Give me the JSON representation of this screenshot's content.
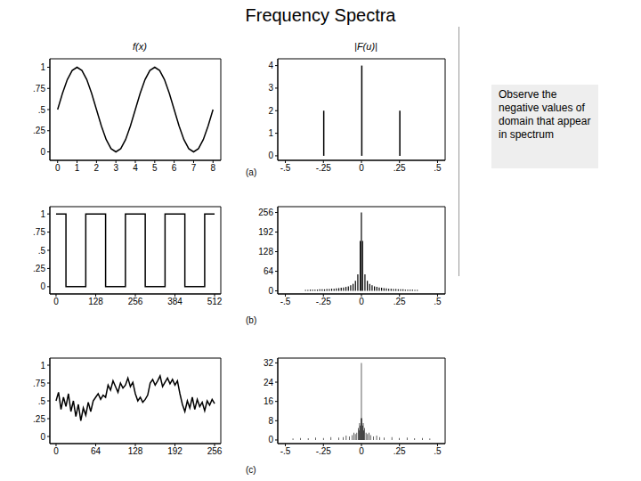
{
  "title": "Frequency Spectra",
  "note": "Observe the negative values of domain that appear in spectrum",
  "panel_labels": [
    "(a)",
    "(b)",
    "(c)"
  ],
  "chart_data": [
    {
      "type": "line",
      "title": "f(x)",
      "color": "#000000",
      "line_style": "solid",
      "x": [
        0,
        0.25,
        0.5,
        0.75,
        1,
        1.25,
        1.5,
        1.75,
        2,
        2.25,
        2.5,
        2.75,
        3,
        3.25,
        3.5,
        3.75,
        4,
        4.25,
        4.5,
        4.75,
        5,
        5.25,
        5.5,
        5.75,
        6,
        6.25,
        6.5,
        6.75,
        7,
        7.25,
        7.5,
        7.75,
        8
      ],
      "values": [
        0.5,
        0.691,
        0.854,
        0.962,
        1,
        0.962,
        0.854,
        0.691,
        0.5,
        0.309,
        0.146,
        0.038,
        0,
        0.038,
        0.146,
        0.309,
        0.5,
        0.691,
        0.854,
        0.962,
        1,
        0.962,
        0.854,
        0.691,
        0.5,
        0.309,
        0.146,
        0.038,
        0,
        0.038,
        0.146,
        0.309,
        0.5
      ],
      "xlim": [
        -0.4,
        8.4
      ],
      "ylim": [
        -0.1,
        1.1
      ],
      "xticks": [
        0,
        1,
        2,
        3,
        4,
        5,
        6,
        7,
        8
      ],
      "yticks": [
        0,
        {
          "value": 0.25,
          "label": ".25"
        },
        {
          "value": 0.5,
          "label": ".5"
        },
        {
          "value": 0.75,
          "label": ".75"
        },
        1
      ]
    },
    {
      "type": "bar",
      "title": "|F(u)|",
      "color": "#000000",
      "x": [
        -0.25,
        0,
        0.25
      ],
      "values": [
        2,
        4,
        2
      ],
      "xlim": [
        -0.55,
        0.55
      ],
      "ylim": [
        -0.2,
        4.3
      ],
      "xticks": [
        {
          "value": -0.5,
          "label": "-.5"
        },
        {
          "value": -0.25,
          "label": "-.25"
        },
        0,
        {
          "value": 0.25,
          "label": ".25"
        },
        {
          "value": 0.5,
          "label": ".5"
        }
      ],
      "yticks": [
        0,
        1,
        2,
        3,
        4
      ]
    },
    {
      "type": "line",
      "color": "#000000",
      "line_style": "step",
      "x": [
        0,
        32,
        96,
        160,
        224,
        288,
        352,
        416,
        480,
        512
      ],
      "values": [
        1,
        0,
        1,
        0,
        1,
        0,
        1,
        0,
        1,
        1
      ],
      "xlim": [
        -20,
        532
      ],
      "ylim": [
        -0.1,
        1.1
      ],
      "xticks": [
        0,
        128,
        256,
        384,
        512
      ],
      "yticks": [
        0,
        {
          "value": 0.25,
          "label": ".25"
        },
        {
          "value": 0.5,
          "label": ".5"
        },
        {
          "value": 0.75,
          "label": ".75"
        },
        1
      ]
    },
    {
      "type": "bar",
      "color": "#000000",
      "x": [
        -0.3672,
        -0.3516,
        -0.3359,
        -0.3203,
        -0.3047,
        -0.2891,
        -0.2734,
        -0.2578,
        -0.2422,
        -0.2266,
        -0.2109,
        -0.1953,
        -0.1797,
        -0.1641,
        -0.1484,
        -0.1328,
        -0.1172,
        -0.1016,
        -0.0859,
        -0.0703,
        -0.0547,
        -0.0391,
        -0.0234,
        -0.0078,
        0,
        0.0078,
        0.0234,
        0.0391,
        0.0547,
        0.0703,
        0.0859,
        0.1016,
        0.1172,
        0.1328,
        0.1484,
        0.1641,
        0.1797,
        0.1953,
        0.2109,
        0.2266,
        0.2422,
        0.2578,
        0.2734,
        0.2891,
        0.3047,
        0.3203,
        0.3359,
        0.3516,
        0.3672
      ],
      "values": [
        3,
        3,
        4,
        4,
        4,
        4,
        5,
        5,
        5,
        6,
        6,
        7,
        7,
        8,
        9,
        10,
        11,
        13,
        15,
        18,
        23,
        33,
        54,
        163,
        256,
        163,
        54,
        33,
        23,
        18,
        15,
        13,
        11,
        10,
        9,
        8,
        7,
        7,
        6,
        6,
        5,
        5,
        5,
        4,
        4,
        4,
        4,
        3,
        3
      ],
      "xlim": [
        -0.55,
        0.55
      ],
      "ylim": [
        -10,
        275
      ],
      "xticks": [
        {
          "value": -0.5,
          "label": "-.5"
        },
        {
          "value": -0.25,
          "label": "-.25"
        },
        0,
        {
          "value": 0.25,
          "label": ".25"
        },
        {
          "value": 0.5,
          "label": ".5"
        }
      ],
      "yticks": [
        0,
        64,
        128,
        192,
        256
      ]
    },
    {
      "type": "line",
      "color": "#000000",
      "line_style": "solid",
      "x": [
        0,
        4,
        8,
        12,
        16,
        20,
        24,
        28,
        32,
        36,
        40,
        44,
        48,
        52,
        56,
        60,
        64,
        68,
        72,
        76,
        80,
        84,
        88,
        92,
        96,
        100,
        104,
        108,
        112,
        116,
        120,
        124,
        128,
        132,
        136,
        140,
        144,
        148,
        152,
        156,
        160,
        164,
        168,
        172,
        176,
        180,
        184,
        188,
        192,
        196,
        200,
        204,
        208,
        212,
        216,
        220,
        224,
        228,
        232,
        236,
        240,
        244,
        248,
        252,
        256
      ],
      "values": [
        0.5,
        0.62,
        0.38,
        0.55,
        0.42,
        0.6,
        0.35,
        0.5,
        0.28,
        0.45,
        0.22,
        0.4,
        0.3,
        0.48,
        0.35,
        0.5,
        0.55,
        0.6,
        0.52,
        0.58,
        0.55,
        0.72,
        0.65,
        0.78,
        0.7,
        0.62,
        0.75,
        0.68,
        0.72,
        0.82,
        0.7,
        0.76,
        0.6,
        0.5,
        0.55,
        0.48,
        0.52,
        0.58,
        0.75,
        0.8,
        0.72,
        0.78,
        0.85,
        0.7,
        0.76,
        0.82,
        0.74,
        0.8,
        0.72,
        0.78,
        0.6,
        0.45,
        0.35,
        0.5,
        0.4,
        0.55,
        0.38,
        0.52,
        0.42,
        0.48,
        0.36,
        0.5,
        0.44,
        0.52,
        0.46
      ],
      "xlim": [
        -10,
        266
      ],
      "ylim": [
        -0.1,
        1.1
      ],
      "xticks": [
        0,
        64,
        128,
        192,
        256
      ],
      "yticks": [
        0,
        {
          "value": 0.25,
          "label": ".25"
        },
        {
          "value": 0.5,
          "label": ".5"
        },
        {
          "value": 0.75,
          "label": ".75"
        },
        1
      ]
    },
    {
      "type": "bar",
      "color": "#000000",
      "x": [
        -0.45,
        -0.4,
        -0.35,
        -0.3,
        -0.25,
        -0.2,
        -0.15,
        -0.12,
        -0.1,
        -0.08,
        -0.06,
        -0.05,
        -0.04,
        -0.03,
        -0.02,
        -0.016,
        -0.012,
        -0.008,
        -0.004,
        0,
        0.004,
        0.008,
        0.012,
        0.016,
        0.02,
        0.03,
        0.04,
        0.05,
        0.06,
        0.08,
        0.1,
        0.12,
        0.15,
        0.2,
        0.25,
        0.3,
        0.35,
        0.4,
        0.45
      ],
      "values": [
        0.6,
        0.8,
        0.7,
        1,
        0.8,
        1.2,
        1,
        1.2,
        1.8,
        1.5,
        2,
        3,
        2.5,
        3,
        5,
        4,
        7,
        6,
        9,
        32,
        9,
        6,
        7,
        4,
        5,
        3,
        2.5,
        3,
        2,
        1.5,
        1.8,
        1.2,
        1,
        1.2,
        0.8,
        1,
        0.7,
        0.8,
        0.6
      ],
      "xlim": [
        -0.55,
        0.55
      ],
      "ylim": [
        -1.5,
        34
      ],
      "xticks": [
        {
          "value": -0.5,
          "label": "-.5"
        },
        {
          "value": -0.25,
          "label": "-.25"
        },
        0,
        {
          "value": 0.25,
          "label": ".25"
        },
        {
          "value": 0.5,
          "label": ".5"
        }
      ],
      "yticks": [
        0,
        8,
        16,
        24,
        32
      ]
    }
  ]
}
